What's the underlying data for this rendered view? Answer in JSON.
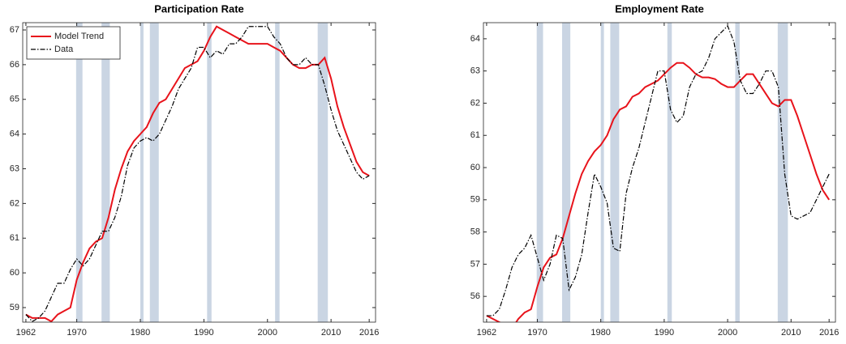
{
  "chart_data": [
    {
      "type": "line",
      "title": "Participation Rate",
      "x": [
        1962,
        1963,
        1964,
        1965,
        1966,
        1967,
        1968,
        1969,
        1970,
        1971,
        1972,
        1973,
        1974,
        1975,
        1976,
        1977,
        1978,
        1979,
        1980,
        1981,
        1982,
        1983,
        1984,
        1985,
        1986,
        1987,
        1988,
        1989,
        1990,
        1991,
        1992,
        1993,
        1994,
        1995,
        1996,
        1997,
        1998,
        1999,
        2000,
        2001,
        2002,
        2003,
        2004,
        2005,
        2006,
        2007,
        2008,
        2009,
        2010,
        2011,
        2012,
        2013,
        2014,
        2015,
        2016
      ],
      "series": [
        {
          "name": "Model Trend",
          "color": "#e8131b",
          "style": "solid",
          "values": [
            58.8,
            58.7,
            58.7,
            58.7,
            58.6,
            58.8,
            58.9,
            59.0,
            59.8,
            60.3,
            60.7,
            60.9,
            61.0,
            61.6,
            62.4,
            63.0,
            63.5,
            63.8,
            64.0,
            64.2,
            64.6,
            64.9,
            65.0,
            65.3,
            65.6,
            65.9,
            66.0,
            66.1,
            66.4,
            66.8,
            67.1,
            67.0,
            66.9,
            66.8,
            66.7,
            66.6,
            66.6,
            66.6,
            66.6,
            66.5,
            66.4,
            66.2,
            66.0,
            65.9,
            65.9,
            66.0,
            66.0,
            66.2,
            65.6,
            64.8,
            64.2,
            63.7,
            63.2,
            62.9,
            62.8
          ]
        },
        {
          "name": "Data",
          "color": "#000000",
          "style": "dashdot",
          "values": [
            58.8,
            58.6,
            58.7,
            58.9,
            59.3,
            59.7,
            59.7,
            60.1,
            60.4,
            60.2,
            60.4,
            60.8,
            61.2,
            61.2,
            61.6,
            62.2,
            63.1,
            63.6,
            63.8,
            63.9,
            63.8,
            64.0,
            64.4,
            64.8,
            65.3,
            65.6,
            65.9,
            66.5,
            66.5,
            66.2,
            66.4,
            66.3,
            66.6,
            66.6,
            66.8,
            67.1,
            67.1,
            67.1,
            67.1,
            66.8,
            66.6,
            66.2,
            66.0,
            66.0,
            66.2,
            66.0,
            66.0,
            65.4,
            64.7,
            64.1,
            63.7,
            63.3,
            62.9,
            62.7,
            62.8
          ]
        }
      ],
      "shaded_regions": [
        [
          1969.9,
          1970.9
        ],
        [
          1973.9,
          1975.2
        ],
        [
          1980.0,
          1980.5
        ],
        [
          1981.5,
          1982.9
        ],
        [
          1990.5,
          1991.2
        ],
        [
          2001.2,
          2001.9
        ],
        [
          2007.9,
          2009.5
        ]
      ],
      "shade_color": "#cad5e3",
      "xlim": [
        1961.5,
        2017
      ],
      "xticks": [
        1962,
        1970,
        1980,
        1990,
        2000,
        2010,
        2016
      ],
      "ylim": [
        58.58,
        67.21
      ],
      "yticks": [
        59,
        60,
        61,
        62,
        63,
        64,
        65,
        66,
        67
      ],
      "legend": "upper left"
    },
    {
      "type": "line",
      "title": "Employment Rate",
      "x": [
        1962,
        1963,
        1964,
        1965,
        1966,
        1967,
        1968,
        1969,
        1970,
        1971,
        1972,
        1973,
        1974,
        1975,
        1976,
        1977,
        1978,
        1979,
        1980,
        1981,
        1982,
        1983,
        1984,
        1985,
        1986,
        1987,
        1988,
        1989,
        1990,
        1991,
        1992,
        1993,
        1994,
        1995,
        1996,
        1997,
        1998,
        1999,
        2000,
        2001,
        2002,
        2003,
        2004,
        2005,
        2006,
        2007,
        2008,
        2009,
        2010,
        2011,
        2012,
        2013,
        2014,
        2015,
        2016
      ],
      "series": [
        {
          "color": "#e8131b",
          "style": "solid",
          "values": [
            55.4,
            55.3,
            55.2,
            55.1,
            55.0,
            55.3,
            55.5,
            55.6,
            56.3,
            56.9,
            57.2,
            57.3,
            57.8,
            58.5,
            59.2,
            59.8,
            60.2,
            60.5,
            60.7,
            61.0,
            61.5,
            61.8,
            61.9,
            62.2,
            62.3,
            62.5,
            62.6,
            62.7,
            62.9,
            63.1,
            63.25,
            63.25,
            63.1,
            62.9,
            62.8,
            62.8,
            62.75,
            62.6,
            62.5,
            62.5,
            62.7,
            62.9,
            62.9,
            62.6,
            62.3,
            62.0,
            61.9,
            62.1,
            62.1,
            61.6,
            61.0,
            60.4,
            59.8,
            59.3,
            59.0
          ]
        },
        {
          "color": "#000000",
          "style": "dashdot",
          "values": [
            55.4,
            55.4,
            55.6,
            56.2,
            56.9,
            57.3,
            57.5,
            57.9,
            57.2,
            56.5,
            57.0,
            57.9,
            57.8,
            56.2,
            56.6,
            57.3,
            58.6,
            59.8,
            59.4,
            58.9,
            57.5,
            57.4,
            59.2,
            60.0,
            60.6,
            61.4,
            62.2,
            63.0,
            63.0,
            61.8,
            61.4,
            61.6,
            62.5,
            62.9,
            63.0,
            63.4,
            64.0,
            64.2,
            64.4,
            63.9,
            62.7,
            62.3,
            62.3,
            62.6,
            63.0,
            63.0,
            62.5,
            59.8,
            58.5,
            58.4,
            58.5,
            58.6,
            59.0,
            59.4,
            59.8
          ]
        }
      ],
      "shaded_regions": [
        [
          1969.9,
          1970.9
        ],
        [
          1973.9,
          1975.2
        ],
        [
          1980.0,
          1980.5
        ],
        [
          1981.5,
          1982.9
        ],
        [
          1990.5,
          1991.2
        ],
        [
          2001.2,
          2001.9
        ],
        [
          2007.9,
          2009.5
        ]
      ],
      "shade_color": "#cad5e3",
      "xlim": [
        1961.5,
        2017
      ],
      "xticks": [
        1962,
        1970,
        1980,
        1990,
        2000,
        2010,
        2016
      ],
      "ylim": [
        55.2,
        64.5
      ],
      "yticks": [
        56,
        57,
        58,
        59,
        60,
        61,
        62,
        63,
        64
      ]
    }
  ]
}
